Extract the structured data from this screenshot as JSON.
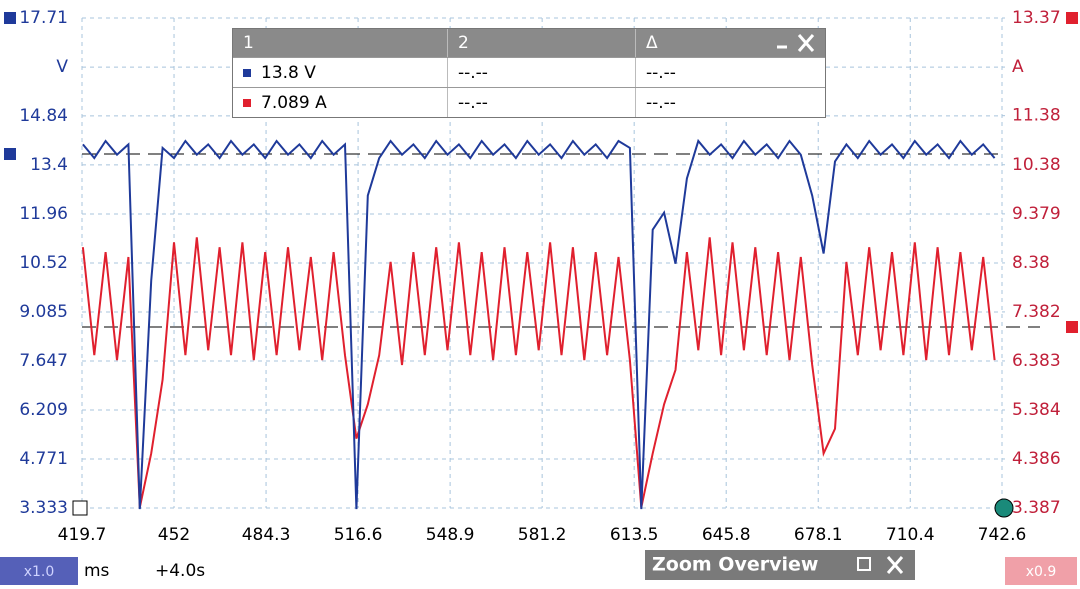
{
  "chart_data": {
    "type": "line",
    "xlim": [
      419.7,
      742.6
    ],
    "xticks": [
      419.7,
      452.0,
      484.3,
      516.6,
      548.9,
      581.2,
      613.5,
      645.8,
      678.1,
      710.4,
      742.6
    ],
    "ylim": [
      3.333,
      17.71
    ],
    "yticks": [
      17.71,
      {
        "value": 16.27,
        "label": "V"
      },
      14.84,
      13.4,
      11.96,
      10.52,
      9.085,
      7.647,
      6.209,
      4.771,
      3.333
    ],
    "y2lim": [
      3.387,
      13.37
    ],
    "y2ticks": [
      13.37,
      {
        "value": 12.37,
        "label": "A"
      },
      11.38,
      10.38,
      9.379,
      8.38,
      7.382,
      6.383,
      5.384,
      4.386,
      3.387
    ],
    "grid": true,
    "x": [
      420,
      424,
      428,
      432,
      436,
      440,
      444,
      448,
      452,
      456,
      460,
      464,
      468,
      472,
      476,
      480,
      484,
      488,
      492,
      496,
      500,
      504,
      508,
      512,
      516,
      520,
      524,
      528,
      532,
      536,
      540,
      544,
      548,
      552,
      556,
      560,
      564,
      568,
      572,
      576,
      580,
      584,
      588,
      592,
      596,
      600,
      604,
      608,
      612,
      616,
      620,
      624,
      628,
      632,
      636,
      640,
      644,
      648,
      652,
      656,
      660,
      664,
      668,
      672,
      676,
      680,
      684,
      688,
      692,
      696,
      700,
      704,
      708,
      712,
      716,
      720,
      724,
      728,
      732,
      736,
      740
    ],
    "series": [
      {
        "color": "#1f3a9a",
        "axis": "y",
        "values": [
          14.0,
          13.6,
          14.1,
          13.7,
          14.0,
          3.3,
          10.0,
          13.9,
          13.6,
          14.1,
          13.7,
          14.0,
          13.6,
          14.1,
          13.7,
          14.0,
          13.6,
          14.1,
          13.7,
          14.0,
          13.6,
          14.1,
          13.7,
          14.0,
          3.3,
          12.5,
          13.6,
          14.1,
          13.7,
          14.0,
          13.6,
          14.1,
          13.7,
          14.0,
          13.6,
          14.1,
          13.7,
          14.0,
          13.6,
          14.1,
          13.7,
          14.0,
          13.6,
          14.1,
          13.7,
          14.0,
          13.6,
          14.1,
          13.9,
          3.3,
          11.5,
          12.0,
          10.5,
          13.0,
          14.1,
          13.7,
          14.0,
          13.6,
          14.1,
          13.7,
          14.0,
          13.6,
          14.1,
          13.7,
          12.5,
          10.8,
          13.5,
          14.0,
          13.6,
          14.1,
          13.7,
          14.0,
          13.6,
          14.1,
          13.7,
          14.0,
          13.6,
          14.1,
          13.7,
          14.0,
          13.6
        ]
      },
      {
        "color": "#e0202e",
        "axis": "y2",
        "values": [
          8.7,
          6.5,
          8.6,
          6.4,
          8.5,
          3.4,
          4.5,
          6.0,
          8.8,
          6.5,
          8.9,
          6.6,
          8.7,
          6.5,
          8.8,
          6.4,
          8.6,
          6.5,
          8.7,
          6.6,
          8.5,
          6.4,
          8.6,
          6.5,
          4.8,
          5.5,
          6.5,
          8.4,
          6.3,
          8.6,
          6.5,
          8.7,
          6.6,
          8.8,
          6.5,
          8.6,
          6.4,
          8.7,
          6.5,
          8.6,
          6.6,
          8.8,
          6.5,
          8.7,
          6.4,
          8.6,
          6.5,
          8.5,
          6.4,
          3.4,
          4.5,
          5.5,
          6.2,
          8.6,
          6.6,
          8.9,
          6.5,
          8.8,
          6.6,
          8.7,
          6.5,
          8.6,
          6.4,
          8.5,
          6.3,
          4.5,
          5.0,
          8.4,
          6.5,
          8.7,
          6.6,
          8.6,
          6.5,
          8.8,
          6.4,
          8.7,
          6.5,
          8.6,
          6.6,
          8.5,
          6.4
        ]
      }
    ]
  },
  "ui": {
    "table": {
      "header": [
        "1",
        "2",
        "Δ"
      ],
      "rows": [
        [
          "13.8 V",
          "--.--",
          "--.--"
        ],
        [
          "7.089 A",
          "--.--",
          "--.--"
        ]
      ]
    },
    "x_zoom": "x1.0",
    "x_unit": "ms",
    "offset": "+4.0s",
    "overview": "Zoom Overview",
    "y_zoom": "x0.9"
  }
}
